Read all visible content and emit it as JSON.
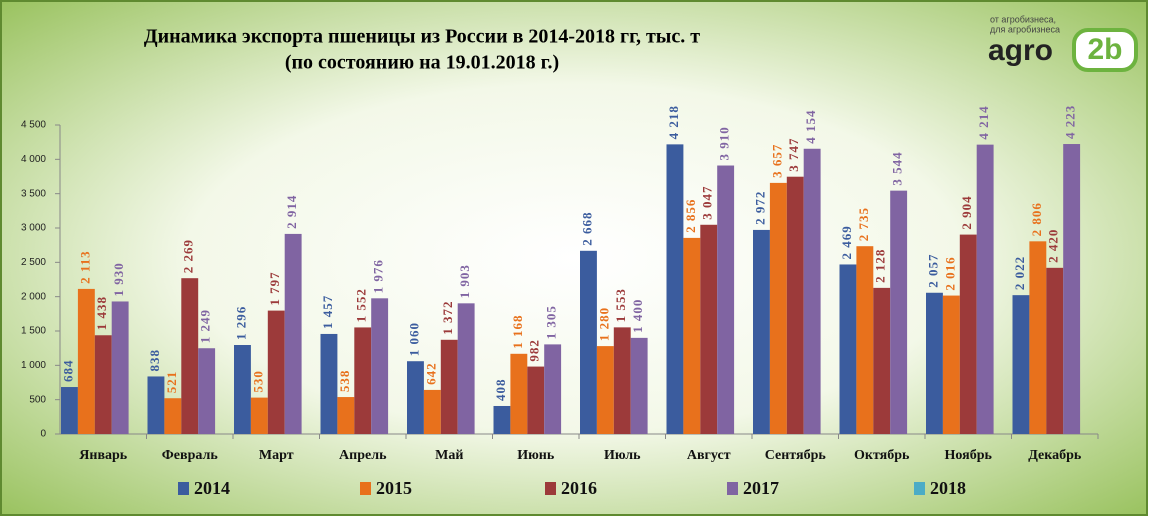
{
  "chart_data": {
    "type": "bar",
    "title": "Динамика экспорта пшеницы из России в 2014-2018 гг, тыс. т",
    "subtitle": "(по состоянию на 19.01.2018 г.)",
    "logo": {
      "tagline": [
        "от агробизнеса,",
        "для агробизнеса"
      ],
      "name": "agro",
      "mark": "2b"
    },
    "categories": [
      "Январь",
      "Февраль",
      "Март",
      "Апрель",
      "Май",
      "Июнь",
      "Июль",
      "Август",
      "Сентябрь",
      "Октябрь",
      "Ноябрь",
      "Декабрь"
    ],
    "series": [
      {
        "name": "2014",
        "color": "#3b5c9e",
        "values": [
          684,
          838,
          1296,
          1457,
          1060,
          408,
          2668,
          4218,
          2972,
          2469,
          2057,
          2022
        ],
        "value_labels": [
          "684",
          "838",
          "1 296",
          "1 457",
          "1 060",
          "408",
          "2 668",
          "4 218",
          "2 972",
          "2 469",
          "2 057",
          "2 022"
        ]
      },
      {
        "name": "2015",
        "color": "#e8711c",
        "values": [
          2113,
          521,
          530,
          538,
          642,
          1168,
          1280,
          2856,
          3657,
          2735,
          2016,
          2806
        ],
        "value_labels": [
          "2 113",
          "521",
          "530",
          "538",
          "642",
          "1 168",
          "1 280",
          "2 856",
          "3 657",
          "2 735",
          "2 016",
          "2 806"
        ]
      },
      {
        "name": "2016",
        "color": "#9c3a3a",
        "values": [
          1438,
          2269,
          1797,
          1552,
          1372,
          982,
          1553,
          3047,
          3747,
          2128,
          2904,
          2420
        ],
        "value_labels": [
          "1 438",
          "2 269",
          "1 797",
          "1 552",
          "1 372",
          "982",
          "1 553",
          "3 047",
          "3 747",
          "2 128",
          "2 904",
          "2 420"
        ]
      },
      {
        "name": "2017",
        "color": "#8064a2",
        "values": [
          1930,
          1249,
          2914,
          1976,
          1903,
          1305,
          1400,
          3910,
          4154,
          3544,
          4214,
          4223
        ],
        "value_labels": [
          "1 930",
          "1 249",
          "2 914",
          "1 976",
          "1 903",
          "1 305",
          "1 400",
          "3 910",
          "4 154",
          "3 544",
          "4 214",
          "4 223"
        ]
      },
      {
        "name": "2018",
        "color": "#4bacc6",
        "values": [
          null,
          null,
          null,
          null,
          null,
          null,
          null,
          null,
          null,
          null,
          null,
          null
        ],
        "value_labels": [
          null,
          null,
          null,
          null,
          null,
          null,
          null,
          null,
          null,
          null,
          null,
          null
        ]
      }
    ],
    "ylim": [
      0,
      4500
    ],
    "yticks": [
      0,
      500,
      {
        "value": 1000,
        "label": "1 000"
      },
      {
        "value": 1500,
        "label": "1 500"
      },
      {
        "value": 2000,
        "label": "2 000"
      },
      {
        "value": 2500,
        "label": "2 500"
      },
      {
        "value": 3000,
        "label": "3 000"
      },
      {
        "value": 3500,
        "label": "3 500"
      },
      {
        "value": 4000,
        "label": "4 000"
      },
      {
        "value": 4500,
        "label": "4 500"
      }
    ],
    "grid": false,
    "legend": "bottom"
  }
}
